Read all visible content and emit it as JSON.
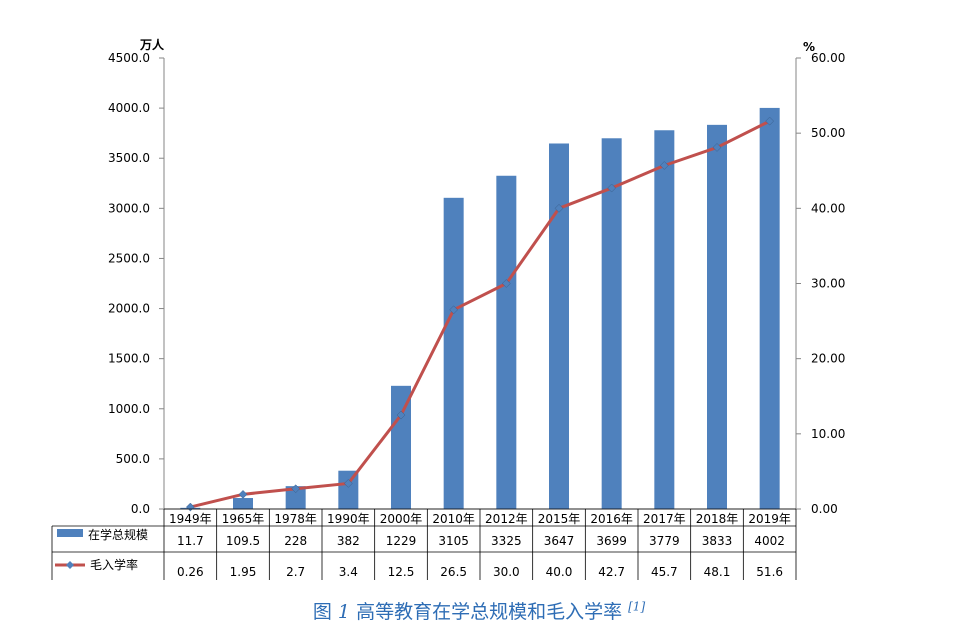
{
  "chart_data": {
    "type": "bar",
    "categories": [
      "1949年",
      "1965年",
      "1978年",
      "1990年",
      "2000年",
      "2010年",
      "2012年",
      "2015年",
      "2016年",
      "2017年",
      "2018年",
      "2019年"
    ],
    "series": [
      {
        "name": "在学总规模",
        "type": "bar",
        "axis": "left",
        "color": "#4F81BD",
        "values": [
          11.7,
          109.5,
          228,
          382,
          1229,
          3105,
          3325,
          3647,
          3699,
          3779,
          3833,
          4002
        ],
        "display": [
          "11.7",
          "109.5",
          "228",
          "382",
          "1229",
          "3105",
          "3325",
          "3647",
          "3699",
          "3779",
          "3833",
          "4002"
        ]
      },
      {
        "name": "毛入学率",
        "type": "line",
        "axis": "right",
        "color": "#C0504D",
        "values": [
          0.26,
          1.95,
          2.7,
          3.4,
          12.5,
          26.5,
          30.0,
          40.0,
          42.7,
          45.7,
          48.1,
          51.6
        ],
        "display": [
          "0.26",
          "1.95",
          "2.7",
          "3.4",
          "12.5",
          "26.5",
          "30.0",
          "40.0",
          "42.7",
          "45.7",
          "48.1",
          "51.6"
        ]
      }
    ],
    "y_left": {
      "unit": "万人",
      "ylim": [
        0,
        4500
      ],
      "ticks": [
        "0.0",
        "500.0",
        "1000.0",
        "1500.0",
        "2000.0",
        "2500.0",
        "3000.0",
        "3500.0",
        "4000.0",
        "4500.0"
      ]
    },
    "y_right": {
      "unit": "%",
      "ylim": [
        0,
        60
      ],
      "ticks": [
        "0.00",
        "10.00",
        "20.00",
        "30.00",
        "40.00",
        "50.00",
        "60.00"
      ]
    },
    "grid": false,
    "legend": "data-table"
  },
  "caption": {
    "prefix": "图",
    "number": "1",
    "text": "高等教育在学总规模和毛入学率",
    "ref": "[1]"
  }
}
